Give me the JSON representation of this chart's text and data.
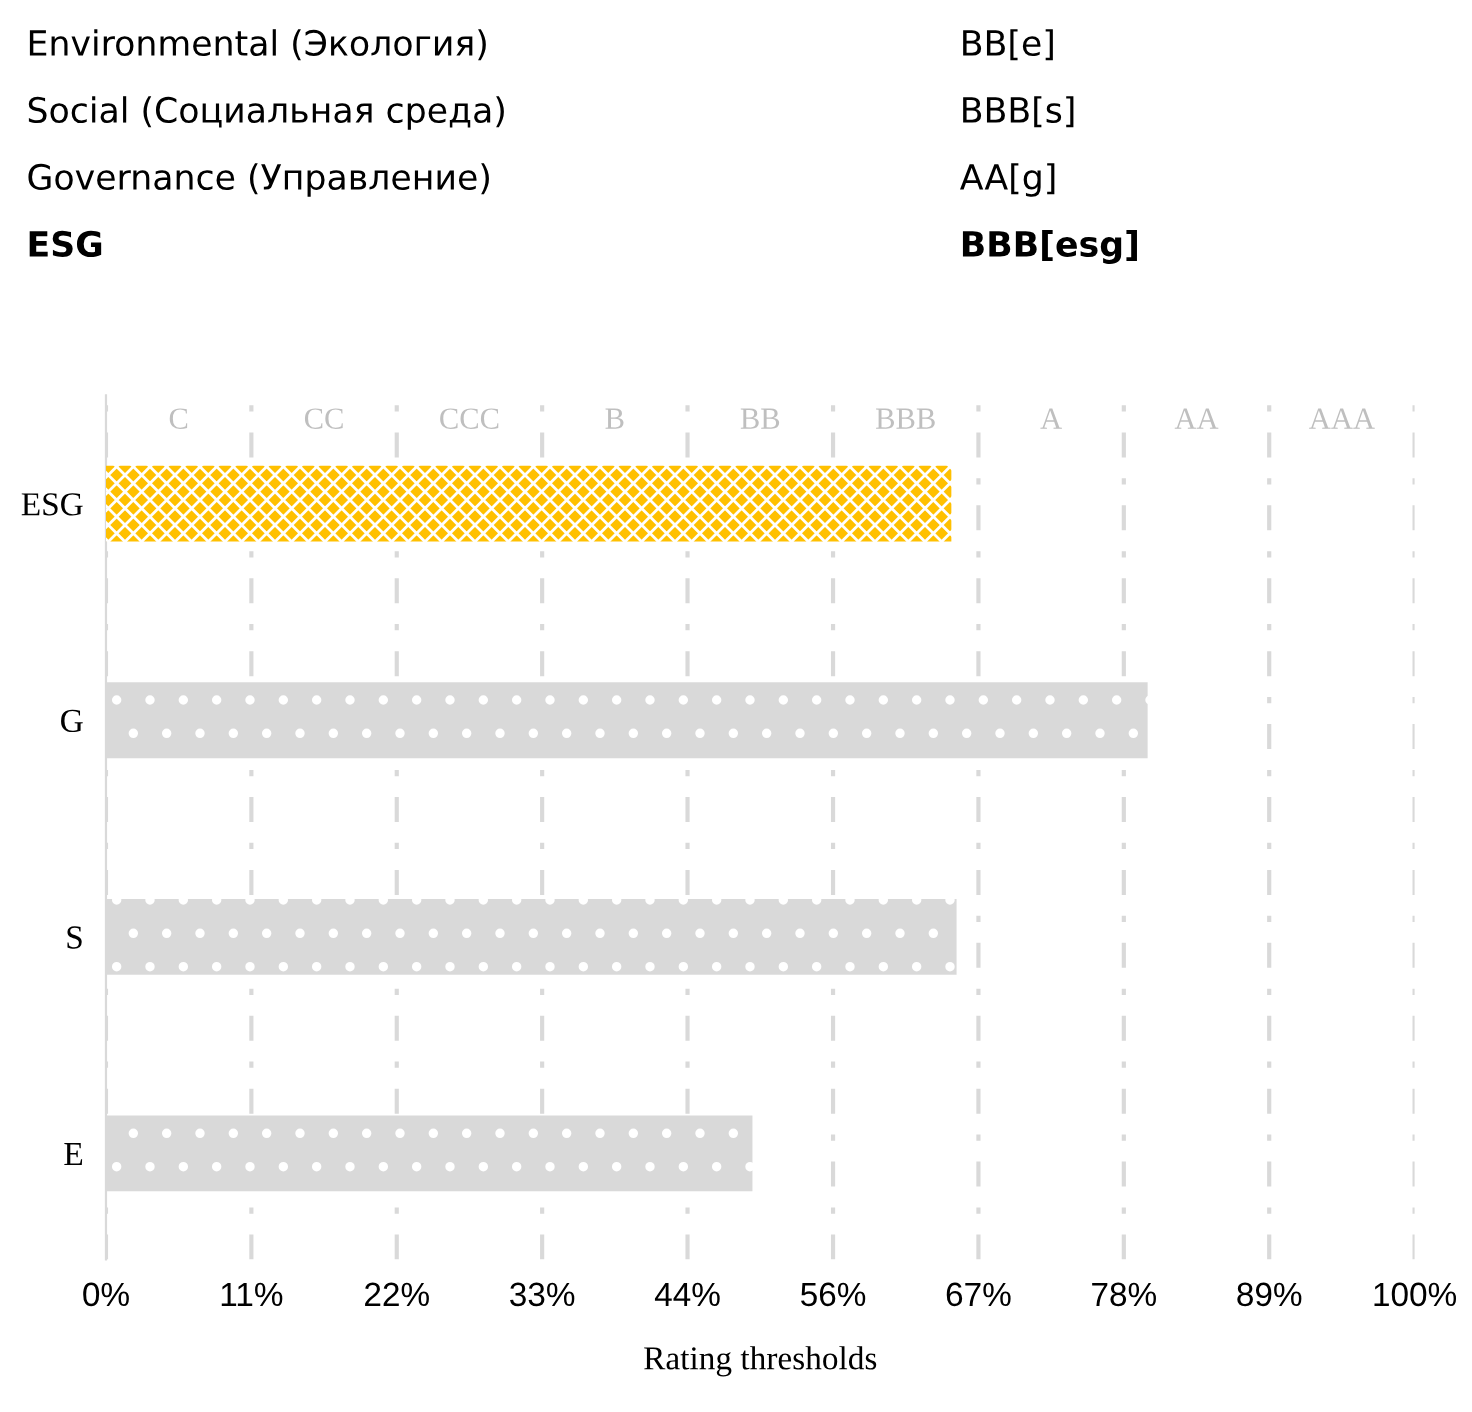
{
  "chart_data": {
    "type": "bar",
    "orientation": "horizontal",
    "xlabel": "Rating thresholds",
    "categories": [
      "ESG",
      "G",
      "S",
      "E"
    ],
    "values": [
      64.6,
      79.6,
      65.0,
      49.4
    ],
    "colors": [
      "#ffc000",
      "#d9d9d9",
      "#d9d9d9",
      "#d9d9d9"
    ],
    "xlim": [
      0,
      100
    ],
    "xticks": [
      {
        "value": 0,
        "label": "0%"
      },
      {
        "value": 11.11,
        "label": "11%"
      },
      {
        "value": 22.22,
        "label": "22%"
      },
      {
        "value": 33.33,
        "label": "33%"
      },
      {
        "value": 44.44,
        "label": "44%"
      },
      {
        "value": 55.56,
        "label": "56%"
      },
      {
        "value": 66.67,
        "label": "67%"
      },
      {
        "value": 77.78,
        "label": "78%"
      },
      {
        "value": 88.89,
        "label": "89%"
      },
      {
        "value": 100,
        "label": "100%"
      }
    ],
    "grid": "x",
    "annotations": [
      "Environmental (Экология)",
      "BB[e]",
      "Social (Социальная среда)",
      "BBB[s]",
      "Governance (Управление)",
      "AA[g]",
      "ESG",
      "BBB[esg]",
      "C",
      "CC",
      "CCC",
      "B",
      "BB",
      "BBB",
      "A",
      "AA",
      "AAA"
    ]
  }
}
